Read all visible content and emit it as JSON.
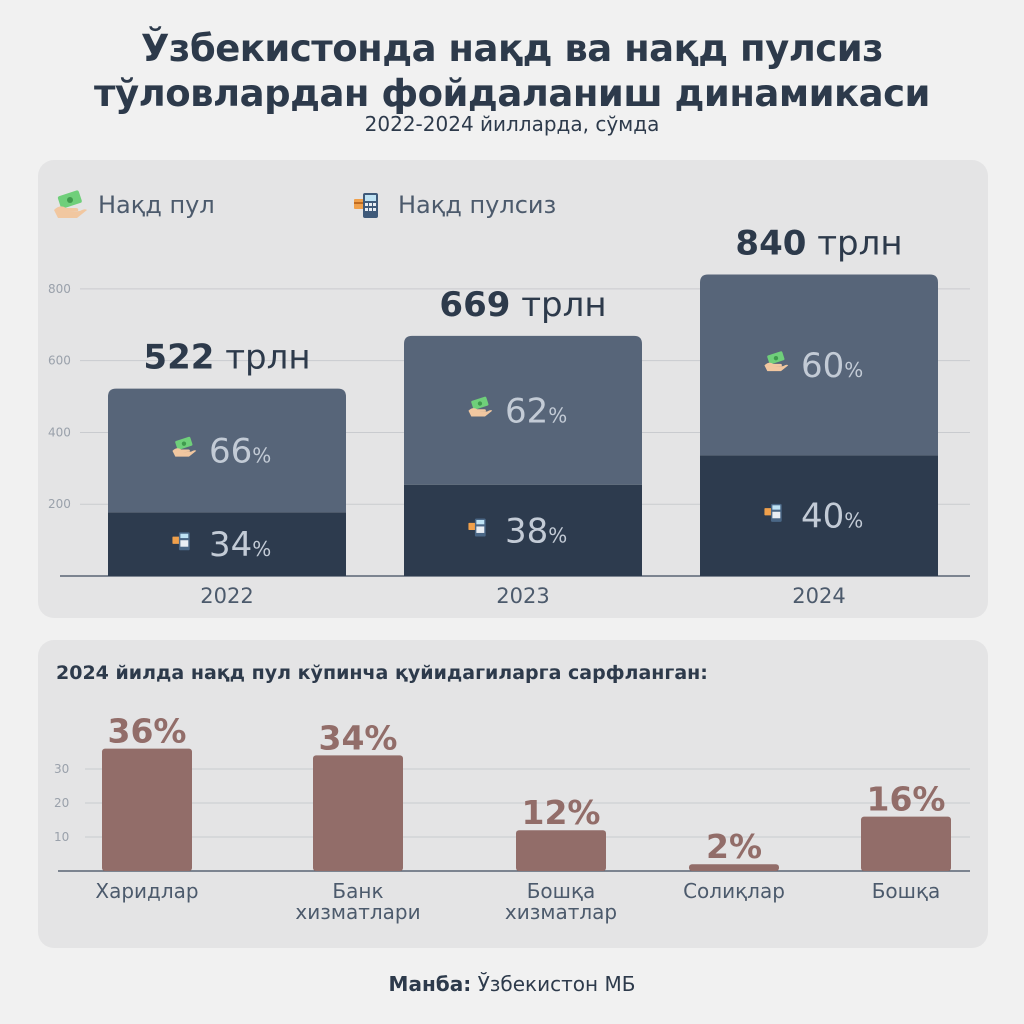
{
  "header": {
    "title_line1": "Ўзбекистонда нақд ва нақд пулсиз",
    "title_line2": "тўловлардан фойдаланиш динамикаси",
    "subtitle": "2022-2024 йилларда, сўмда"
  },
  "colors": {
    "cash": "#576579",
    "noncash": "#2d3b4e",
    "spend": "#926d69",
    "panel": "#e4e4e5"
  },
  "legend": {
    "cash": "Нақд пул",
    "cash_icon": "cash-hand-icon",
    "noncash": "Нақд пулсиз",
    "noncash_icon": "pos-terminal-icon"
  },
  "chart_data": [
    {
      "type": "bar",
      "stacked": true,
      "categories": [
        "2022",
        "2023",
        "2024"
      ],
      "totals": [
        522,
        669,
        840
      ],
      "total_labels": [
        {
          "value": "522",
          "unit": " трлн"
        },
        {
          "value": "669",
          "unit": " трлн"
        },
        {
          "value": "840",
          "unit": " трлн"
        }
      ],
      "series": [
        {
          "name": "Нақд пулсиз",
          "percent": [
            34,
            38,
            40
          ],
          "values": [
            177.5,
            254.2,
            336
          ]
        },
        {
          "name": "Нақд пул",
          "percent": [
            66,
            62,
            60
          ],
          "values": [
            344.5,
            414.8,
            504
          ]
        }
      ],
      "y_ticks": [
        200,
        400,
        600,
        800
      ],
      "ylim": [
        0,
        900
      ],
      "grid": true
    },
    {
      "type": "bar",
      "title": "2024 йилда нақд пул кўпинча қуйидагиларга сарфланган:",
      "categories": [
        [
          "Харидлар"
        ],
        [
          "Банк",
          "хизматлари"
        ],
        [
          "Бошқа",
          "хизматлар"
        ],
        [
          "Солиқлар"
        ],
        [
          "Бошқа"
        ]
      ],
      "values": [
        36,
        34,
        12,
        2,
        16
      ],
      "value_labels": [
        "36%",
        "34%",
        "12%",
        "2%",
        "16%"
      ],
      "y_ticks": [
        10,
        20,
        30
      ],
      "ylim": [
        0,
        40
      ],
      "grid": true
    }
  ],
  "footer": {
    "source_label": "Манба:",
    "source_value": " Ўзбекистон МБ"
  }
}
